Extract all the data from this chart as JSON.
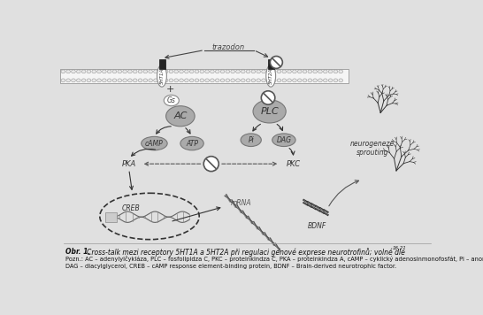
{
  "bg_color": "#e0e0e0",
  "diagram_bg": "#d8d8d8",
  "white": "#ffffff",
  "gray_medium": "#999999",
  "gray_dark": "#666666",
  "gray_elem": "#aaaaaa",
  "black": "#111111",
  "title_bold": "Obr. 1. ",
  "title_rest": "Cross-talk mezi receptory 5HT1A a 5HT2A při regulaci genové exprese neurotrofinů; volné dle",
  "title_sup": "16,21",
  "caption_line1": "Pozn.: AC – adenylylčykláza, PLC – fosfolipidza C, PKC – proteinkindza C, PKA – proteinkindza A, cAMP – cyklický adenosinmonofosfát, Pi – anorganický fosfát,",
  "caption_line2": "DAG – diacylglycerol, CREB – cAMP response element-binding protein, BDNF – Brain-derived neurotrophic factor.",
  "trazodon_label": "trazodon",
  "receptor1_label": "5HT1A",
  "receptor2_label": "5HT2A",
  "gs_label": "Gs",
  "ac_label": "AC",
  "plc_label": "PLC",
  "camp_label": "cAMP",
  "atp_label": "ATP",
  "pi_label": "Pi",
  "dag_label": "DAG",
  "pka_label": "PKA",
  "pkc_label": "PKC",
  "creb_label": "CREB",
  "mrna_label": "mRNA",
  "bdnf_label": "BDNF",
  "neurogeneze_label": "neurogeneze\nsprouting",
  "plus_label": "+",
  "membrane_color": "#f0f0f0",
  "membrane_stripe": "#cccccc",
  "receptor_color": "#333333",
  "ellipse_gray": "#aaaaaa",
  "ellipse_dark": "#888888"
}
